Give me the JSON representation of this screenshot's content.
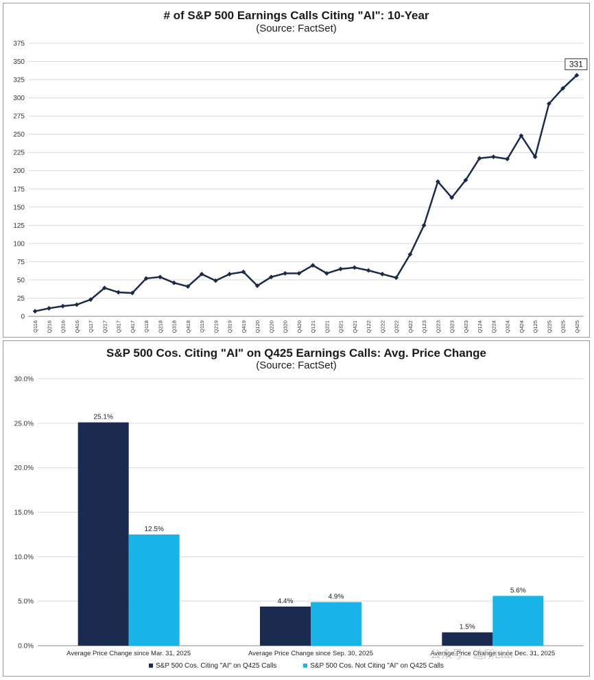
{
  "chart_data": [
    {
      "type": "line",
      "title": "# of S&P 500 Earnings Calls Citing \"AI\": 10-Year",
      "subtitle": "(Source: FactSet)",
      "ylim": [
        0,
        375
      ],
      "yticks": [
        0,
        25,
        50,
        75,
        100,
        125,
        150,
        175,
        200,
        225,
        250,
        275,
        300,
        325,
        350,
        375
      ],
      "grid": true,
      "color": "#1a2a4a",
      "x": [
        "Q116",
        "Q216",
        "Q316",
        "Q416",
        "Q117",
        "Q217",
        "Q317",
        "Q417",
        "Q118",
        "Q218",
        "Q318",
        "Q418",
        "Q119",
        "Q219",
        "Q319",
        "Q419",
        "Q120",
        "Q220",
        "Q320",
        "Q420",
        "Q121",
        "Q221",
        "Q321",
        "Q421",
        "Q122",
        "Q222",
        "Q322",
        "Q422",
        "Q123",
        "Q223",
        "Q323",
        "Q423",
        "Q124",
        "Q224",
        "Q324",
        "Q424",
        "Q125",
        "Q225",
        "Q325",
        "Q425"
      ],
      "values": [
        7,
        11,
        14,
        16,
        23,
        39,
        33,
        32,
        52,
        54,
        46,
        41,
        58,
        49,
        58,
        61,
        42,
        54,
        59,
        59,
        70,
        59,
        65,
        67,
        63,
        58,
        53,
        85,
        125,
        185,
        163,
        187,
        217,
        219,
        216,
        248,
        219,
        292,
        313,
        331
      ],
      "annotation": "331"
    },
    {
      "type": "bar",
      "title": "S&P 500 Cos. Citing \"AI\" on Q425 Earnings Calls: Avg. Price Change",
      "subtitle": "(Source: FactSet)",
      "ylim": [
        0,
        30
      ],
      "yticks": [
        "0.0%",
        "5.0%",
        "10.0%",
        "15.0%",
        "20.0%",
        "25.0%",
        "30.0%"
      ],
      "grid": true,
      "categories": [
        "Average Price Change since Mar. 31, 2025",
        "Average Price Change since Sep. 30, 2025",
        "Average Price Change since Dec. 31, 2025"
      ],
      "series": [
        {
          "name": "S&P 500 Cos. Citing \"AI\" on Q425 Calls",
          "color": "#1b2a4f",
          "values": [
            25.1,
            4.4,
            1.5
          ],
          "labels": [
            "25.1%",
            "4.4%",
            "1.5%"
          ]
        },
        {
          "name": "S&P 500 Cos. Not Citing \"AI\" on Q425 Calls",
          "color": "#19b5e8",
          "values": [
            12.5,
            4.9,
            5.6
          ],
          "labels": [
            "12.5%",
            "4.9%",
            "5.6%"
          ]
        }
      ],
      "legend": "bottom"
    }
  ],
  "watermark": "公众号 · 迪所Lab"
}
